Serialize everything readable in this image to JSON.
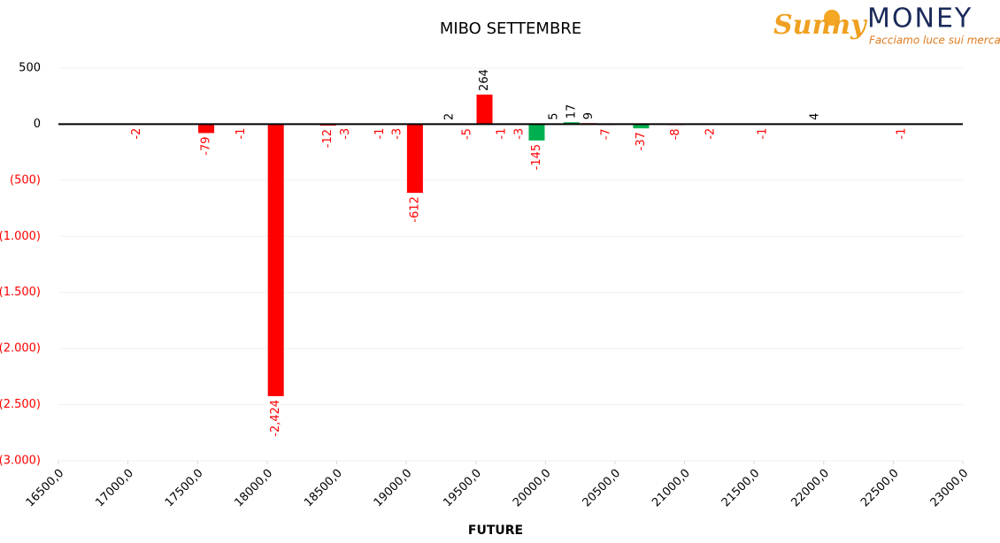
{
  "chart_data": {
    "type": "bar",
    "title": "MIBO SETTEMBRE",
    "x_label": "FUTURE",
    "x": [
      17062.5,
      17562.5,
      17812.5,
      18062.5,
      18437.5,
      18562.5,
      18812.5,
      18937.5,
      19062.5,
      19312.5,
      19437.5,
      19562.5,
      19687.5,
      19812.5,
      19937.5,
      20062.5,
      20187.5,
      20312.5,
      20437.5,
      20687.5,
      20937.5,
      21187.5,
      21562.5,
      21937.5,
      22562.5
    ],
    "values": [
      -2,
      -79,
      -1,
      -2424,
      -12,
      -3,
      -1,
      -3,
      -612,
      2,
      -5,
      264,
      -1,
      -3,
      -145,
      5,
      17,
      9,
      -7,
      -37,
      -8,
      -2,
      -1,
      4,
      -1
    ],
    "value_labels": [
      "-2",
      "-79",
      "-1",
      "-2,424",
      "-12",
      "-3",
      "-1",
      "-3",
      "-612",
      "2",
      "-5",
      "264",
      "-1",
      "-3",
      "-145",
      "5",
      "17",
      "9",
      "-7",
      "-37",
      "-8",
      "-2",
      "-1",
      "4",
      "-1"
    ],
    "colors": [
      "#ff0000",
      "#ff0000",
      "#ff0000",
      "#ff0000",
      "#ff0000",
      "#ff0000",
      "#ff0000",
      "#ff0000",
      "#ff0000",
      "#ff0000",
      "#ff0000",
      "#ff0000",
      "#ff0000",
      "#ff0000",
      "#00b050",
      "#ff0000",
      "#00b050",
      "#ff0000",
      "#ff0000",
      "#00b050",
      "#ff0000",
      "#ff0000",
      "#ff0000",
      "#ff0000",
      "#ff0000"
    ],
    "negative_label_color": "#ff0000",
    "positive_label_color": "#000000",
    "xlim": [
      16500,
      23000
    ],
    "xticks": [
      {
        "value": 16500,
        "label": "16500,0"
      },
      {
        "value": 17000,
        "label": "17000,0"
      },
      {
        "value": 17500,
        "label": "17500,0"
      },
      {
        "value": 18000,
        "label": "18000,0"
      },
      {
        "value": 18500,
        "label": "18500,0"
      },
      {
        "value": 19000,
        "label": "19000,0"
      },
      {
        "value": 19500,
        "label": "19500,0"
      },
      {
        "value": 20000,
        "label": "20000,0"
      },
      {
        "value": 20500,
        "label": "20500,0"
      },
      {
        "value": 21000,
        "label": "21000,0"
      },
      {
        "value": 21500,
        "label": "21500,0"
      },
      {
        "value": 22000,
        "label": "22000,0"
      },
      {
        "value": 22500,
        "label": "22500,0"
      },
      {
        "value": 23000,
        "label": "23000,0"
      }
    ],
    "ylim": [
      -3000,
      500
    ],
    "yticks": [
      500,
      0,
      {
        "value": -500,
        "label": "(500)"
      },
      {
        "value": -1000,
        "label": "(1.000)"
      },
      {
        "value": -1500,
        "label": "(1.500)"
      },
      {
        "value": -2000,
        "label": "(2.000)"
      },
      {
        "value": -2500,
        "label": "(2.500)"
      },
      {
        "value": -3000,
        "label": "(3.000)"
      }
    ],
    "grid": true
  },
  "logo": {
    "brand": "Sunny",
    "name": "MONEY",
    "tagline": "Facciamo luce sui mercati"
  }
}
